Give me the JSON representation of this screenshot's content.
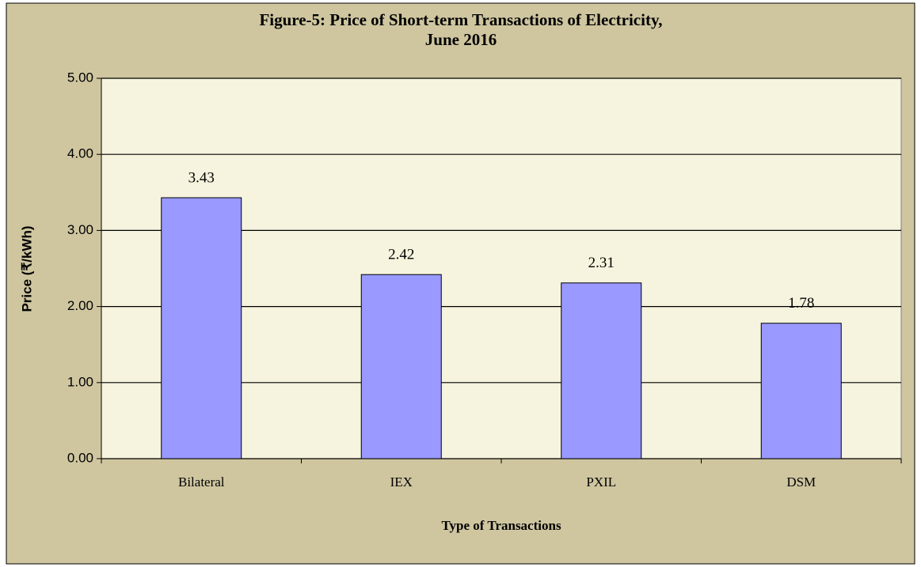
{
  "chart_data": {
    "type": "bar",
    "title": [
      "Figure-5: Price of Short-term Transactions of Electricity,",
      "June 2016"
    ],
    "x_label": "Type of Transactions",
    "y_label": "Price (₹/kWh)",
    "categories": [
      "Bilateral",
      "IEX",
      "PXIL",
      "DSM"
    ],
    "values": [
      3.43,
      2.42,
      2.31,
      1.78
    ],
    "color": "#9999ff",
    "ylim": [
      0,
      5
    ],
    "yticks": [
      {
        "value": 0,
        "label": "0.00"
      },
      {
        "value": 1,
        "label": "1.00"
      },
      {
        "value": 2,
        "label": "2.00"
      },
      {
        "value": 3,
        "label": "3.00"
      },
      {
        "value": 4,
        "label": "4.00"
      },
      {
        "value": 5,
        "label": "5.00"
      }
    ],
    "grid": true
  }
}
